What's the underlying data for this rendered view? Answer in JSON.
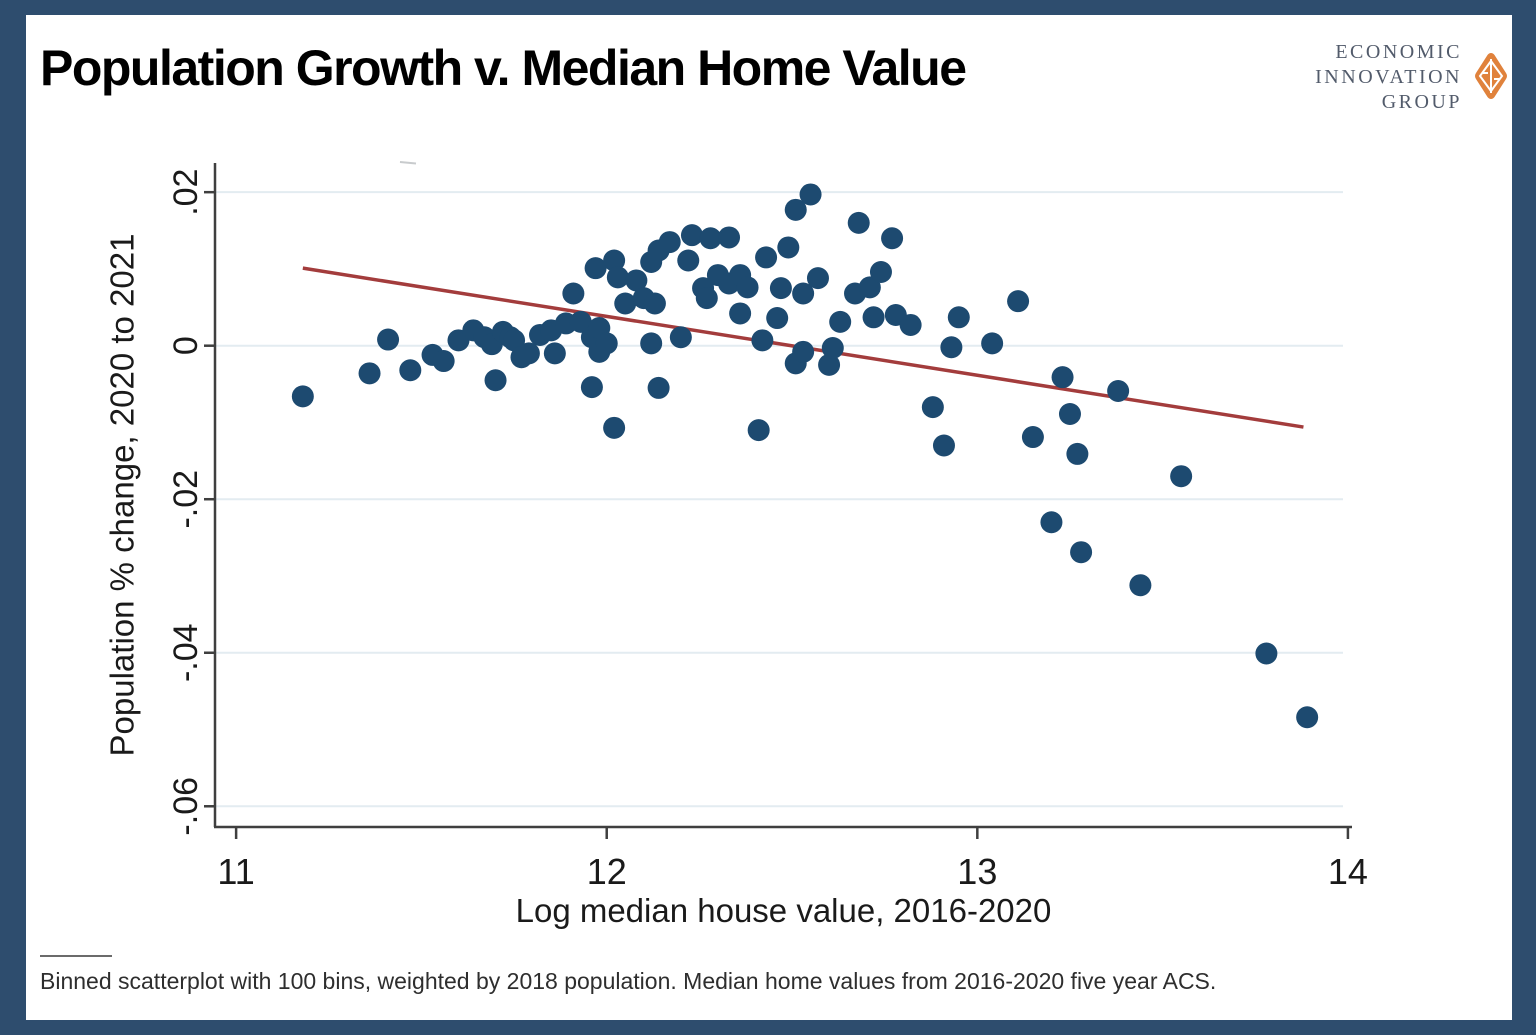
{
  "header": {
    "title": "Population Growth v. Median Home Value",
    "logo_lines": [
      "ECONOMIC",
      "INNOVATION",
      "GROUP"
    ]
  },
  "footer": {
    "note": "Binned scatterplot with 100 bins, weighted by 2018 population. Median home values from 2016-2020 five year ACS."
  },
  "colors": {
    "frame": "#2e4d6e",
    "point": "#1d4a70",
    "trend": "#a33c3c",
    "grid": "#e3ecf1",
    "axis": "#3f3f3f",
    "text": "#1a1a1a",
    "logo_orange": "#e0823c",
    "logo_gray": "#525b6b"
  },
  "chart_data": {
    "type": "scatter",
    "title": "Population Growth v. Median Home Value",
    "xlabel": "Log median house value, 2016-2020",
    "ylabel": "Population % change, 2020 to 2021",
    "xlim": [
      10.943,
      14.011
    ],
    "ylim": [
      -0.0627,
      0.0238
    ],
    "x_ticks": [
      11,
      12,
      13,
      14
    ],
    "x_tick_labels": [
      "11",
      "12",
      "13",
      "14"
    ],
    "y_ticks": [
      0.02,
      0,
      -0.02,
      -0.04,
      -0.06
    ],
    "y_tick_labels": [
      ".02",
      "0",
      "-.02",
      "-.04",
      "-.06"
    ],
    "grid": "horizontal",
    "legend": "none",
    "trend_line": {
      "x1": 11.18,
      "y1": 0.0101,
      "x2": 13.88,
      "y2": -0.0106
    },
    "points": [
      [
        11.18,
        -0.0066
      ],
      [
        11.36,
        -0.0036
      ],
      [
        11.41,
        0.0008
      ],
      [
        11.47,
        -0.0032
      ],
      [
        11.53,
        -0.0012
      ],
      [
        11.56,
        -0.002
      ],
      [
        11.6,
        0.0007
      ],
      [
        11.64,
        0.002
      ],
      [
        11.67,
        0.0011
      ],
      [
        11.69,
        0.0002
      ],
      [
        11.7,
        -0.0045
      ],
      [
        11.72,
        0.0018
      ],
      [
        11.74,
        0.0011
      ],
      [
        11.75,
        0.0007
      ],
      [
        11.77,
        -0.0015
      ],
      [
        11.79,
        -0.001
      ],
      [
        11.82,
        0.0014
      ],
      [
        11.85,
        0.002
      ],
      [
        11.86,
        -0.001
      ],
      [
        11.89,
        0.0029
      ],
      [
        11.91,
        0.0068
      ],
      [
        11.93,
        0.0031
      ],
      [
        11.96,
        0.0011
      ],
      [
        11.96,
        -0.0054
      ],
      [
        11.98,
        -0.0008
      ],
      [
        11.98,
        0.0023
      ],
      [
        11.97,
        0.0101
      ],
      [
        12.0,
        0.0003
      ],
      [
        12.02,
        0.0111
      ],
      [
        12.02,
        -0.0107
      ],
      [
        12.03,
        0.0089
      ],
      [
        12.05,
        0.0055
      ],
      [
        12.08,
        0.0085
      ],
      [
        12.1,
        0.0062
      ],
      [
        12.12,
        0.0109
      ],
      [
        12.12,
        0.0003
      ],
      [
        12.13,
        0.0055
      ],
      [
        12.14,
        0.0124
      ],
      [
        12.14,
        -0.0055
      ],
      [
        12.17,
        0.0135
      ],
      [
        12.2,
        0.0011
      ],
      [
        12.22,
        0.0111
      ],
      [
        12.23,
        0.0144
      ],
      [
        12.26,
        0.0075
      ],
      [
        12.27,
        0.0062
      ],
      [
        12.28,
        0.014
      ],
      [
        12.3,
        0.0092
      ],
      [
        12.33,
        0.0141
      ],
      [
        12.33,
        0.0081
      ],
      [
        12.36,
        0.0092
      ],
      [
        12.36,
        0.0042
      ],
      [
        12.38,
        0.0076
      ],
      [
        12.41,
        -0.011
      ],
      [
        12.42,
        0.0007
      ],
      [
        12.43,
        0.0115
      ],
      [
        12.46,
        0.0036
      ],
      [
        12.47,
        0.0075
      ],
      [
        12.49,
        0.0128
      ],
      [
        12.51,
        0.0177
      ],
      [
        12.51,
        -0.0023
      ],
      [
        12.53,
        0.0068
      ],
      [
        12.53,
        -0.0008
      ],
      [
        12.55,
        0.0197
      ],
      [
        12.57,
        0.0088
      ],
      [
        12.6,
        -0.0025
      ],
      [
        12.61,
        -0.0003
      ],
      [
        12.63,
        0.0031
      ],
      [
        12.67,
        0.0068
      ],
      [
        12.68,
        0.016
      ],
      [
        12.71,
        0.0076
      ],
      [
        12.72,
        0.0037
      ],
      [
        12.74,
        0.0096
      ],
      [
        12.77,
        0.014
      ],
      [
        12.78,
        0.004
      ],
      [
        12.82,
        0.0027
      ],
      [
        12.88,
        -0.008
      ],
      [
        12.91,
        -0.013
      ],
      [
        12.93,
        -0.0002
      ],
      [
        12.95,
        0.0037
      ],
      [
        13.04,
        0.0003
      ],
      [
        13.11,
        0.0058
      ],
      [
        13.15,
        -0.0119
      ],
      [
        13.2,
        -0.023
      ],
      [
        13.23,
        -0.0041
      ],
      [
        13.25,
        -0.0089
      ],
      [
        13.27,
        -0.0141
      ],
      [
        13.28,
        -0.0269
      ],
      [
        13.38,
        -0.0059
      ],
      [
        13.44,
        -0.0312
      ],
      [
        13.55,
        -0.017
      ],
      [
        13.78,
        -0.0401
      ],
      [
        13.89,
        -0.0484
      ]
    ]
  }
}
